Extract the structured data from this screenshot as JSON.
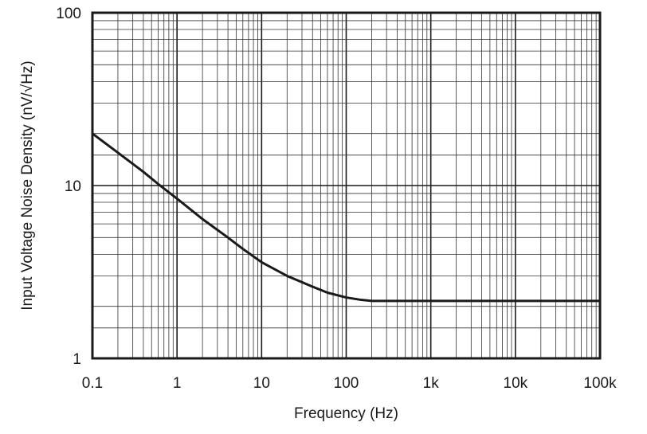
{
  "chart_data": {
    "type": "line",
    "title": "",
    "xlabel": "Frequency (Hz)",
    "ylabel": "Input Voltage Noise Density (nV/√Hz)",
    "x_scale": "log",
    "y_scale": "log",
    "xlim": [
      0.1,
      100000
    ],
    "ylim": [
      1,
      100
    ],
    "grid": true,
    "legend": "none",
    "x_tick_values": [
      0.1,
      1,
      10,
      100,
      1000,
      10000,
      100000
    ],
    "x_tick_labels": [
      "0.1",
      "1",
      "10",
      "100",
      "1k",
      "10k",
      "100k"
    ],
    "y_tick_values": [
      1,
      10,
      100
    ],
    "y_tick_labels": [
      "1",
      "10",
      "100"
    ],
    "line_color": "#1a1a1a",
    "series": [
      {
        "x": [
          0.1,
          0.2,
          0.4,
          0.6,
          1,
          2,
          4,
          6,
          10,
          20,
          40,
          60,
          100,
          150,
          200,
          300,
          1000,
          10000,
          100000
        ],
        "y": [
          20,
          15.5,
          12,
          10.2,
          8.4,
          6.4,
          5.0,
          4.3,
          3.6,
          3.0,
          2.6,
          2.4,
          2.25,
          2.18,
          2.15,
          2.15,
          2.15,
          2.15,
          2.15
        ]
      }
    ]
  }
}
